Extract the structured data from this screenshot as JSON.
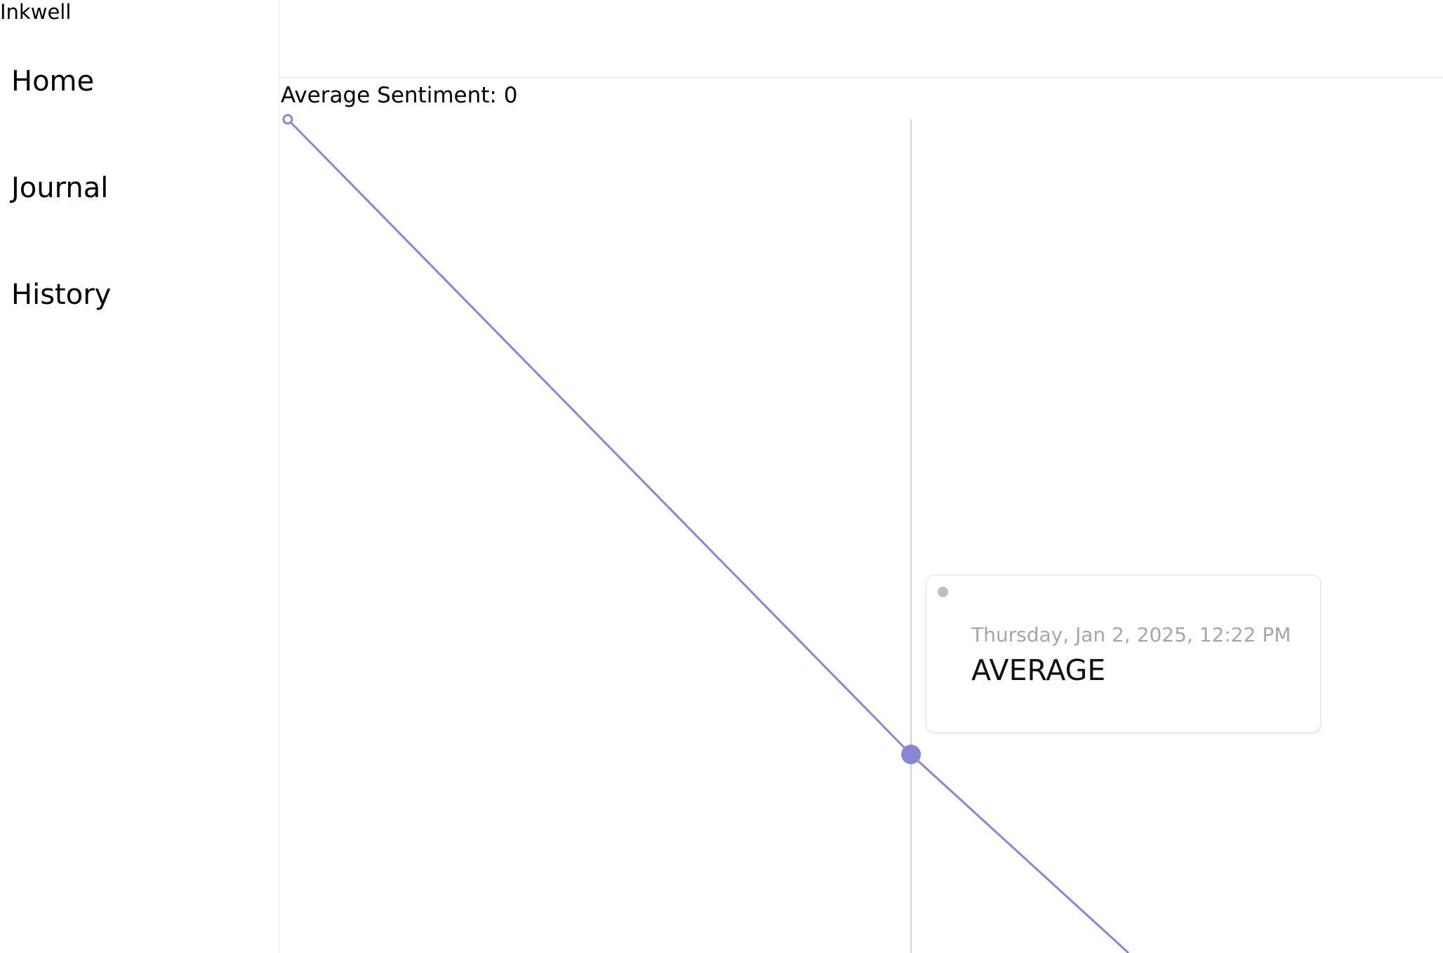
{
  "app": {
    "title": "Inkwell"
  },
  "sidebar": {
    "items": [
      {
        "label": "Home"
      },
      {
        "label": "Journal"
      },
      {
        "label": "History"
      }
    ]
  },
  "main": {
    "average_label": "Average Sentiment: 0"
  },
  "tooltip": {
    "date": "Thursday, Jan 2, 2025, 12:22 PM",
    "value": "AVERAGE",
    "marker_color": "#bdbdbd"
  },
  "colors": {
    "line": "#8787d4",
    "crosshair": "#d4d4d4",
    "divider": "#e6e6e6"
  },
  "chart_data": {
    "type": "line",
    "series": [
      {
        "color": "#8787d4",
        "points": [
          {
            "x": "start",
            "y": 1
          },
          {
            "x": "Thursday, Jan 2, 2025, 12:22 PM",
            "y": 0
          },
          {
            "x": "end",
            "y": -0.6
          }
        ]
      }
    ],
    "hovered_point": "Thursday, Jan 2, 2025, 12:22 PM",
    "grid": false,
    "axes_visible": false
  }
}
